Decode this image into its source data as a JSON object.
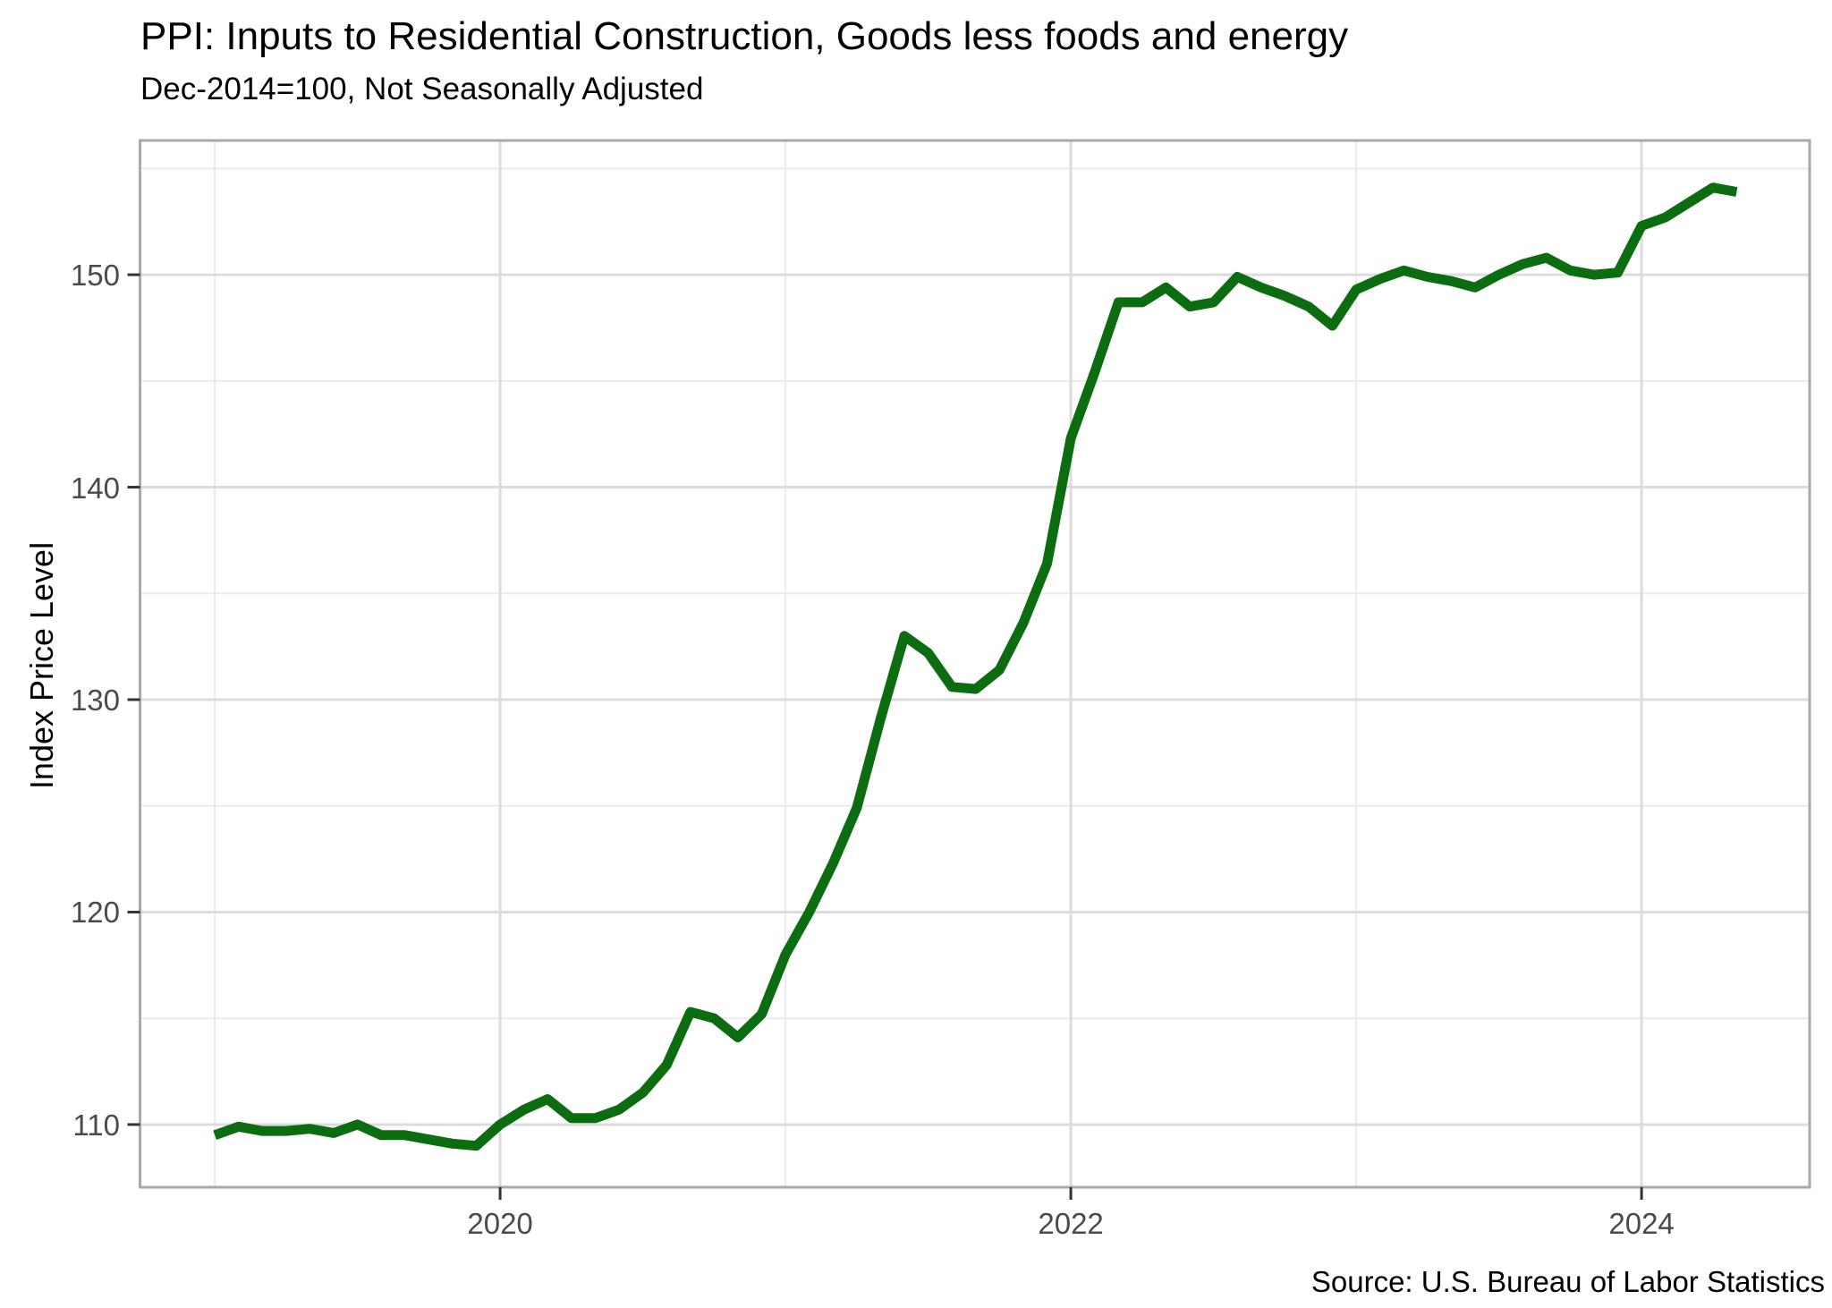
{
  "header": {
    "title": "PPI: Inputs to Residential Construction, Goods less foods and energy",
    "subtitle": "Dec-2014=100, Not Seasonally Adjusted"
  },
  "footer": {
    "source": "Source: U.S. Bureau of Labor Statistics"
  },
  "chart_data": {
    "type": "line",
    "title": "PPI: Inputs to Residential Construction, Goods less foods and energy",
    "subtitle": "Dec-2014=100, Not Seasonally Adjusted",
    "xlabel": "",
    "ylabel": "Index Price Level",
    "source": "Source: U.S. Bureau of Labor Statistics",
    "legend": false,
    "grid": true,
    "line_color": "#0c6d10",
    "grid_major_color": "#dcdcdc",
    "grid_minor_color": "#ebebeb",
    "panel_border_color": "#a9a9a9",
    "tick_color": "#333333",
    "x_axis": {
      "tick_labels": [
        "2020",
        "2022",
        "2024"
      ],
      "major_ticks": [
        2020,
        2022,
        2024
      ],
      "minor_ticks": [
        2019,
        2021,
        2023
      ],
      "domain": [
        2018.738,
        2024.589
      ]
    },
    "y_axis": {
      "tick_labels": [
        "110",
        "120",
        "130",
        "140",
        "150"
      ],
      "major_ticks": [
        110,
        120,
        130,
        140,
        150
      ],
      "minor_ticks": [
        115,
        125,
        135,
        145,
        155
      ],
      "domain": [
        107.05,
        156.32
      ]
    },
    "series": [
      {
        "name": "PPI Inputs to Residential Construction, Goods less foods and energy",
        "start_year": 2019,
        "start_month": 1,
        "frequency": "monthly",
        "values": [
          109.5,
          109.9,
          109.7,
          109.7,
          109.8,
          109.6,
          110.0,
          109.5,
          109.5,
          109.3,
          109.1,
          109.0,
          110.0,
          110.7,
          111.2,
          110.3,
          110.3,
          110.7,
          111.5,
          112.8,
          115.3,
          115.0,
          114.1,
          115.2,
          118.0,
          120.0,
          122.3,
          124.9,
          129.1,
          133.0,
          132.2,
          130.6,
          130.5,
          131.4,
          133.6,
          136.4,
          142.3,
          145.4,
          148.7,
          148.7,
          149.4,
          148.5,
          148.7,
          149.9,
          149.4,
          149.0,
          148.5,
          147.6,
          149.3,
          149.8,
          150.2,
          149.9,
          149.7,
          149.4,
          150.0,
          150.5,
          150.8,
          150.2,
          150.0,
          150.1,
          152.3,
          152.7,
          153.4,
          154.1,
          153.9
        ]
      }
    ]
  }
}
